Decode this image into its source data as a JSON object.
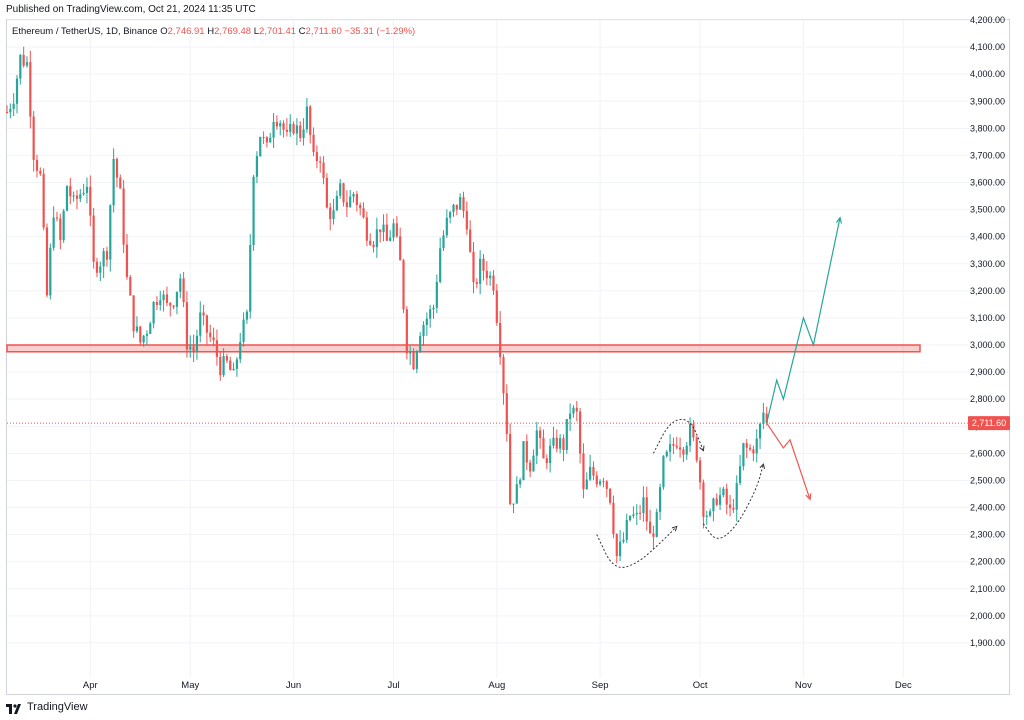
{
  "header": {
    "published": "Published on TradingView.com, Oct 21, 2024 11:35 UTC"
  },
  "legend": {
    "symbol": "Ethereum / TetherUS, 1D, Binance",
    "o_label": "O",
    "o": "2,746.91",
    "h_label": "H",
    "h": "2,769.48",
    "l_label": "L",
    "l": "2,701.41",
    "c_label": "C",
    "c": "2,711.60",
    "change": "−35.31 (−1.29%)"
  },
  "footer": {
    "brand": "TradingView"
  },
  "colors": {
    "up": "#26a69a",
    "down": "#ef5350",
    "zone": "#ef5350",
    "grid": "#f0f3fa",
    "arrow_up": "#26a69a",
    "arrow_down": "#ef5350"
  },
  "chart_data": {
    "type": "candlestick",
    "ylim": [
      1800,
      4200
    ],
    "ytick_values": [
      1900,
      2000,
      2100,
      2200,
      2300,
      2400,
      2500,
      2600,
      2700,
      2800,
      2900,
      3000,
      3100,
      3200,
      3300,
      3400,
      3500,
      3600,
      3700,
      3800,
      3900,
      4000,
      4100,
      4200
    ],
    "ytick_labels": [
      "1,900.00",
      "2,000.00",
      "2,100.00",
      "2,200.00",
      "2,300.00",
      "2,400.00",
      "2,500.00",
      "2,600.00",
      "2,700.00",
      "2,800.00",
      "2,900.00",
      "3,000.00",
      "3,100.00",
      "3,200.00",
      "3,300.00",
      "3,400.00",
      "3,500.00",
      "3,600.00",
      "3,700.00",
      "3,800.00",
      "3,900.00",
      "4,000.00",
      "4,100.00",
      "4,200.00"
    ],
    "xlim": [
      "2024-03-07",
      "2024-12-06"
    ],
    "xticks": [
      {
        "date": "2024-04-01",
        "label": "Apr"
      },
      {
        "date": "2024-05-01",
        "label": "May"
      },
      {
        "date": "2024-06-01",
        "label": "Jun"
      },
      {
        "date": "2024-07-01",
        "label": "Jul"
      },
      {
        "date": "2024-08-01",
        "label": "Aug"
      },
      {
        "date": "2024-09-01",
        "label": "Sep"
      },
      {
        "date": "2024-10-01",
        "label": "Oct"
      },
      {
        "date": "2024-11-01",
        "label": "Nov"
      },
      {
        "date": "2024-12-01",
        "label": "Dec"
      }
    ],
    "last_price": 2711.6,
    "last_price_label": "2,711.60",
    "zone": {
      "start": "2024-03-07",
      "end": "2024-12-06",
      "low": 2975,
      "high": 3000
    },
    "close_path": [
      [
        "2024-03-07",
        3860
      ],
      [
        "2024-03-09",
        3920
      ],
      [
        "2024-03-11",
        4060
      ],
      [
        "2024-03-13",
        4040
      ],
      [
        "2024-03-15",
        3710
      ],
      [
        "2024-03-17",
        3620
      ],
      [
        "2024-03-19",
        3180
      ],
      [
        "2024-03-21",
        3500
      ],
      [
        "2024-03-23",
        3380
      ],
      [
        "2024-03-25",
        3590
      ],
      [
        "2024-03-27",
        3520
      ],
      [
        "2024-03-29",
        3560
      ],
      [
        "2024-03-31",
        3600
      ],
      [
        "2024-04-02",
        3290
      ],
      [
        "2024-04-04",
        3310
      ],
      [
        "2024-04-06",
        3350
      ],
      [
        "2024-04-08",
        3690
      ],
      [
        "2024-04-10",
        3550
      ],
      [
        "2024-04-12",
        3240
      ],
      [
        "2024-04-14",
        3080
      ],
      [
        "2024-04-16",
        3010
      ],
      [
        "2024-04-18",
        3060
      ],
      [
        "2024-04-20",
        3150
      ],
      [
        "2024-04-22",
        3200
      ],
      [
        "2024-04-24",
        3140
      ],
      [
        "2024-04-26",
        3170
      ],
      [
        "2024-04-28",
        3250
      ],
      [
        "2024-04-30",
        3010
      ],
      [
        "2024-05-02",
        2980
      ],
      [
        "2024-05-04",
        3100
      ],
      [
        "2024-05-06",
        3050
      ],
      [
        "2024-05-08",
        3000
      ],
      [
        "2024-05-10",
        2920
      ],
      [
        "2024-05-12",
        2930
      ],
      [
        "2024-05-14",
        2880
      ],
      [
        "2024-05-16",
        3030
      ],
      [
        "2024-05-18",
        3100
      ],
      [
        "2024-05-20",
        3650
      ],
      [
        "2024-05-22",
        3780
      ],
      [
        "2024-05-24",
        3720
      ],
      [
        "2024-05-26",
        3850
      ],
      [
        "2024-05-28",
        3830
      ],
      [
        "2024-05-30",
        3760
      ],
      [
        "2024-06-01",
        3810
      ],
      [
        "2024-06-03",
        3780
      ],
      [
        "2024-06-05",
        3860
      ],
      [
        "2024-06-07",
        3680
      ],
      [
        "2024-06-09",
        3700
      ],
      [
        "2024-06-11",
        3500
      ],
      [
        "2024-06-13",
        3480
      ],
      [
        "2024-06-15",
        3570
      ],
      [
        "2024-06-17",
        3520
      ],
      [
        "2024-06-19",
        3560
      ],
      [
        "2024-06-21",
        3500
      ],
      [
        "2024-06-23",
        3420
      ],
      [
        "2024-06-25",
        3390
      ],
      [
        "2024-06-27",
        3440
      ],
      [
        "2024-06-29",
        3380
      ],
      [
        "2024-07-01",
        3440
      ],
      [
        "2024-07-03",
        3300
      ],
      [
        "2024-07-05",
        3000
      ],
      [
        "2024-07-07",
        2940
      ],
      [
        "2024-07-09",
        3060
      ],
      [
        "2024-07-11",
        3100
      ],
      [
        "2024-07-13",
        3140
      ],
      [
        "2024-07-15",
        3360
      ],
      [
        "2024-07-17",
        3450
      ],
      [
        "2024-07-19",
        3500
      ],
      [
        "2024-07-21",
        3530
      ],
      [
        "2024-07-23",
        3460
      ],
      [
        "2024-07-25",
        3200
      ],
      [
        "2024-07-27",
        3290
      ],
      [
        "2024-07-29",
        3270
      ],
      [
        "2024-07-31",
        3230
      ],
      [
        "2024-08-02",
        2990
      ],
      [
        "2024-08-04",
        2690
      ],
      [
        "2024-08-05",
        2420
      ],
      [
        "2024-08-07",
        2460
      ],
      [
        "2024-08-09",
        2610
      ],
      [
        "2024-08-11",
        2560
      ],
      [
        "2024-08-13",
        2680
      ],
      [
        "2024-08-15",
        2570
      ],
      [
        "2024-08-17",
        2610
      ],
      [
        "2024-08-19",
        2640
      ],
      [
        "2024-08-21",
        2630
      ],
      [
        "2024-08-23",
        2760
      ],
      [
        "2024-08-25",
        2740
      ],
      [
        "2024-08-27",
        2450
      ],
      [
        "2024-08-29",
        2530
      ],
      [
        "2024-08-31",
        2510
      ],
      [
        "2024-09-02",
        2520
      ],
      [
        "2024-09-04",
        2440
      ],
      [
        "2024-09-06",
        2220
      ],
      [
        "2024-09-08",
        2280
      ],
      [
        "2024-09-10",
        2370
      ],
      [
        "2024-09-12",
        2360
      ],
      [
        "2024-09-14",
        2420
      ],
      [
        "2024-09-16",
        2290
      ],
      [
        "2024-09-18",
        2350
      ],
      [
        "2024-09-20",
        2560
      ],
      [
        "2024-09-22",
        2610
      ],
      [
        "2024-09-24",
        2650
      ],
      [
        "2024-09-26",
        2630
      ],
      [
        "2024-09-28",
        2680
      ],
      [
        "2024-09-30",
        2600
      ],
      [
        "2024-10-02",
        2400
      ],
      [
        "2024-10-04",
        2360
      ],
      [
        "2024-10-06",
        2440
      ],
      [
        "2024-10-08",
        2440
      ],
      [
        "2024-10-10",
        2380
      ],
      [
        "2024-10-12",
        2460
      ],
      [
        "2024-10-14",
        2620
      ],
      [
        "2024-10-16",
        2610
      ],
      [
        "2024-10-18",
        2640
      ],
      [
        "2024-10-20",
        2750
      ],
      [
        "2024-10-21",
        2711.6
      ]
    ],
    "projection_up": [
      [
        "2024-10-21",
        2711.6
      ],
      [
        "2024-10-24",
        2870
      ],
      [
        "2024-10-26",
        2800
      ],
      [
        "2024-11-01",
        3100
      ],
      [
        "2024-11-04",
        3000
      ],
      [
        "2024-11-12",
        3470
      ]
    ],
    "projection_down": [
      [
        "2024-10-21",
        2711.6
      ],
      [
        "2024-10-26",
        2620
      ],
      [
        "2024-10-28",
        2650
      ],
      [
        "2024-11-03",
        2430
      ]
    ],
    "curves": [
      {
        "color": "#333333",
        "points": [
          [
            "2024-08-31",
            2300
          ],
          [
            "2024-09-05",
            2170
          ],
          [
            "2024-09-12",
            2190
          ],
          [
            "2024-09-20",
            2280
          ],
          [
            "2024-09-24",
            2330
          ]
        ]
      },
      {
        "color": "#333333",
        "points": [
          [
            "2024-09-17",
            2600
          ],
          [
            "2024-09-22",
            2720
          ],
          [
            "2024-09-28",
            2730
          ],
          [
            "2024-10-02",
            2610
          ]
        ]
      },
      {
        "color": "#333333",
        "points": [
          [
            "2024-10-02",
            2340
          ],
          [
            "2024-10-06",
            2270
          ],
          [
            "2024-10-12",
            2330
          ],
          [
            "2024-10-18",
            2470
          ],
          [
            "2024-10-20",
            2560
          ]
        ]
      }
    ]
  }
}
